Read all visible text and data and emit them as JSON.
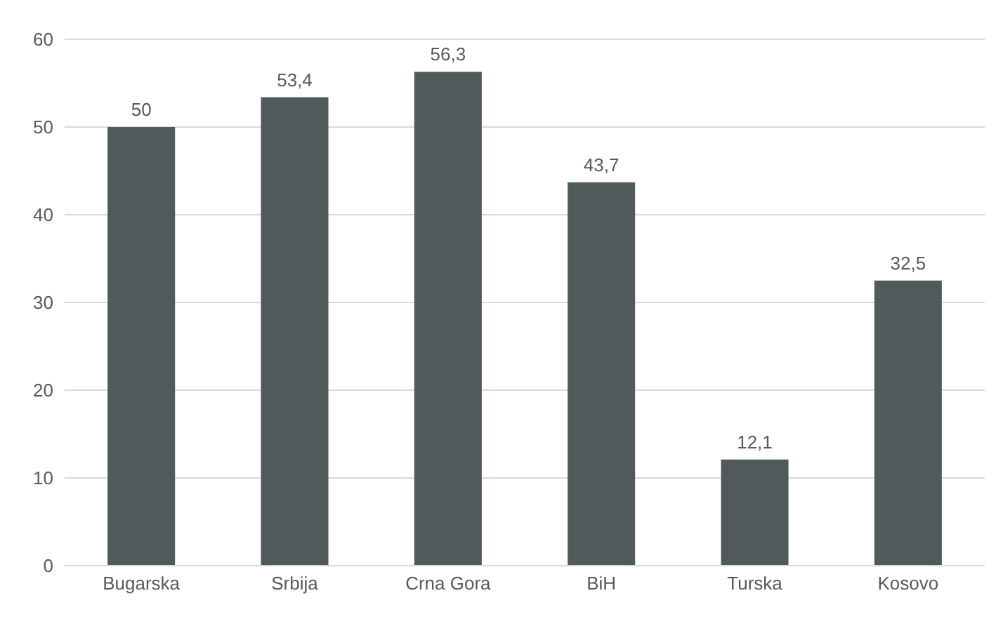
{
  "chart_data": {
    "type": "bar",
    "categories": [
      "Bugarska",
      "Srbija",
      "Crna Gora",
      "BiH",
      "Turska",
      "Kosovo"
    ],
    "values": [
      50,
      53.4,
      56.3,
      43.7,
      12.1,
      32.5
    ],
    "value_labels": [
      "50",
      "53,4",
      "56,3",
      "43,7",
      "12,1",
      "32,5"
    ],
    "color": "#505a5a",
    "ylim": [
      0,
      60
    ],
    "yticks": [
      0,
      10,
      20,
      30,
      40,
      50,
      60
    ],
    "grid": "y"
  }
}
